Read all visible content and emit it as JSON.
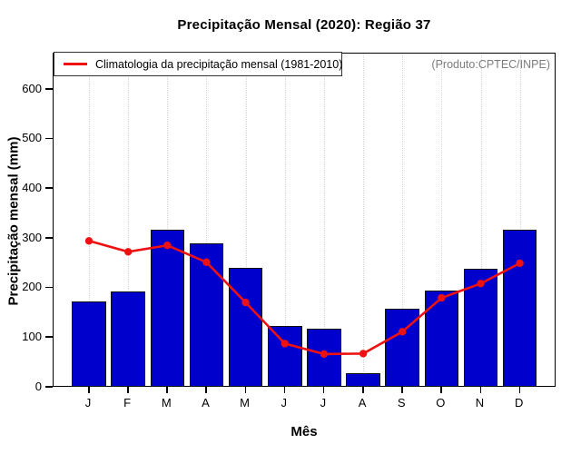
{
  "figure": {
    "title": "Precipitação Mensal (2020): Região 37",
    "watermark": "(Produto:CPTEC/INPE)",
    "legend_label": "Climatologia da precipitação mensal (1981-2010)",
    "colors": {
      "bar_fill": "#0000CD",
      "bar_border": "#101010",
      "line": "#EE1111",
      "grid": "#D6D6D6",
      "axis": "#000000",
      "watermark": "#7D7D7D"
    }
  },
  "chart_data": {
    "type": "bar",
    "title": "Precipitação Mensal (2020): Região 37",
    "xlabel": "Mês",
    "ylabel": "Precipitação mensal (mm)",
    "categories": [
      "J",
      "F",
      "M",
      "A",
      "M",
      "J",
      "J",
      "A",
      "S",
      "O",
      "N",
      "D"
    ],
    "series": [
      {
        "name": "Precipitação mensal (2020)",
        "type": "bar",
        "values": [
          172,
          192,
          317,
          289,
          240,
          123,
          117,
          27,
          157,
          194,
          238,
          316
        ]
      },
      {
        "name": "Climatologia da precipitação mensal (1981-2010)",
        "type": "line",
        "values": [
          294,
          272,
          285,
          251,
          170,
          87,
          66,
          67,
          111,
          179,
          208,
          249
        ]
      }
    ],
    "ylim": [
      0,
      671
    ],
    "y_ticks": [
      0,
      100,
      200,
      300,
      400,
      500,
      600
    ],
    "grid": "vertical-dotted-per-month",
    "legend_position": "top-left",
    "annotation": "(Produto:CPTEC/INPE)"
  }
}
